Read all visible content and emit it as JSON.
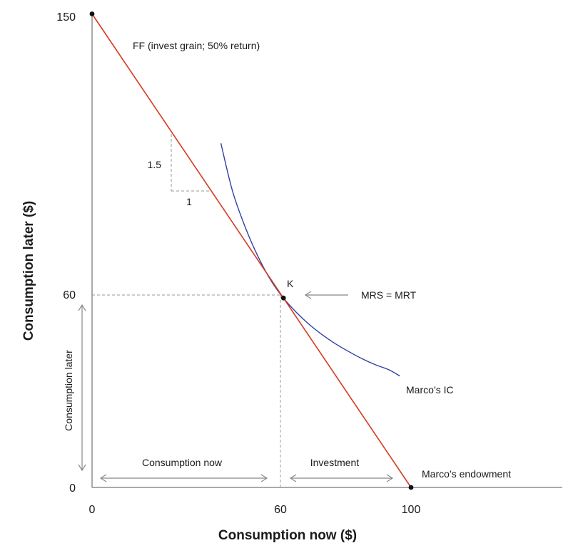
{
  "chart_data": {
    "type": "line",
    "xlabel": "Consumption now ($)",
    "ylabel": "Consumption later ($)",
    "xlim": [
      0,
      145
    ],
    "ylim": [
      0,
      150
    ],
    "x_ticks": [
      "0",
      "60",
      "100"
    ],
    "y_ticks": [
      "0",
      "60",
      "150"
    ],
    "series": [
      {
        "name": "FF (invest grain; 50% return)",
        "color": "#d63a1f",
        "points": [
          [
            0,
            150
          ],
          [
            100,
            0
          ]
        ]
      },
      {
        "name": "Marco’s IC",
        "color": "#3040a0",
        "points": [
          [
            40.4,
            109
          ],
          [
            44,
            94
          ],
          [
            48,
            82.5
          ],
          [
            52,
            73.2
          ],
          [
            56,
            65.7
          ],
          [
            60,
            60
          ],
          [
            64,
            55.5
          ],
          [
            68,
            51.7
          ],
          [
            72,
            48.5
          ],
          [
            76,
            45.7
          ],
          [
            80,
            43.3
          ],
          [
            85,
            40.6
          ],
          [
            89,
            38.8
          ],
          [
            93,
            37.3
          ],
          [
            96.5,
            35.3
          ]
        ]
      }
    ],
    "points": [
      {
        "name": "K",
        "x": 60,
        "y": 60
      },
      {
        "name": "top",
        "x": 0,
        "y": 150
      },
      {
        "name": "Marco’s endowment",
        "x": 100,
        "y": 0
      }
    ],
    "slope_triangle": {
      "rise_label": "1.5",
      "run_label": "1",
      "x0": 25,
      "y0": 112.5,
      "run": 15,
      "rise": 22.5
    },
    "annotations": {
      "ff_label": "FF (invest grain; 50% return)",
      "ic_label": "Marco’s IC",
      "k_label": "K",
      "mrs_label": "MRS = MRT",
      "endowment_label": "Marco’s endowment",
      "consumption_now": "Consumption now",
      "investment": "Investment",
      "consumption_later": "Consumption later",
      "rise": "1.5",
      "run": "1"
    },
    "colors": {
      "axis": "#555555",
      "dashed": "#999999",
      "arrow": "#888888"
    }
  }
}
